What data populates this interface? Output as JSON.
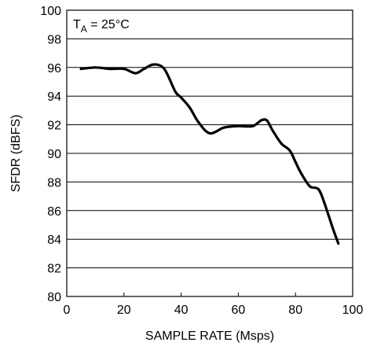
{
  "chart_data": {
    "type": "line",
    "title": "",
    "xlabel": "SAMPLE RATE (Msps)",
    "ylabel": "SFDR (dBFS)",
    "xlim": [
      0,
      100
    ],
    "ylim": [
      80,
      100
    ],
    "xticks": [
      0,
      20,
      40,
      60,
      80,
      100
    ],
    "yticks": [
      80,
      82,
      84,
      86,
      88,
      90,
      92,
      94,
      96,
      98,
      100
    ],
    "grid": {
      "horizontal": true,
      "vertical": false
    },
    "annotation": {
      "main": "T",
      "sub": "A",
      "rest": " = 25°C"
    },
    "series": [
      {
        "line_color": "#000000",
        "x": [
          5,
          10,
          15,
          20,
          24,
          27,
          30,
          33,
          35,
          38,
          40,
          43,
          46,
          50,
          55,
          60,
          65,
          68,
          70,
          72,
          75,
          78,
          80,
          82,
          85,
          88,
          90,
          93,
          95
        ],
        "y": [
          95.9,
          96.0,
          95.9,
          95.9,
          95.6,
          95.9,
          96.2,
          96.1,
          95.6,
          94.3,
          93.9,
          93.2,
          92.2,
          91.4,
          91.8,
          91.9,
          91.9,
          92.3,
          92.3,
          91.6,
          90.7,
          90.2,
          89.4,
          88.6,
          87.7,
          87.5,
          86.6,
          84.8,
          83.7
        ]
      }
    ]
  }
}
